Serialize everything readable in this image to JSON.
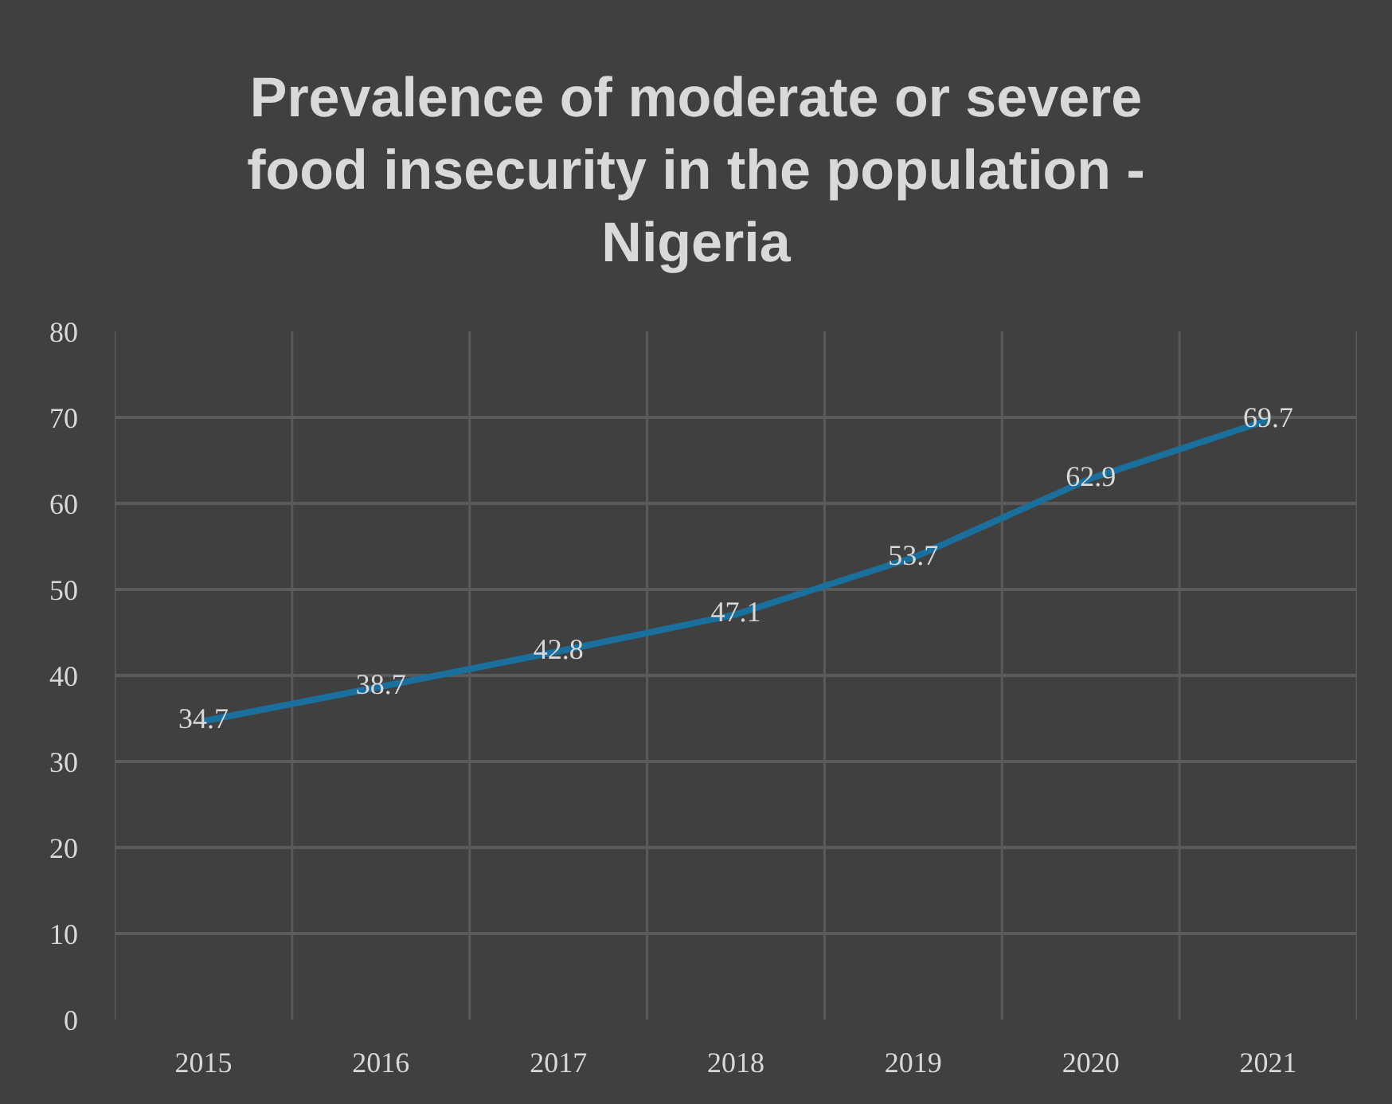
{
  "chart_data": {
    "type": "line",
    "title": "Prevalence of moderate or severe food insecurity in the population - Nigeria",
    "categories": [
      "2015",
      "2016",
      "2017",
      "2018",
      "2019",
      "2020",
      "2021"
    ],
    "series": [
      {
        "color": "#1b6f9c",
        "values": [
          34.7,
          38.7,
          42.8,
          47.1,
          53.7,
          62.9,
          69.7
        ]
      }
    ],
    "ylim": [
      0,
      80
    ],
    "yticks": [
      0,
      10,
      20,
      30,
      40,
      50,
      60,
      70,
      80
    ],
    "grid": true,
    "marker": "none",
    "line_style": "solid",
    "data_labels": true
  }
}
